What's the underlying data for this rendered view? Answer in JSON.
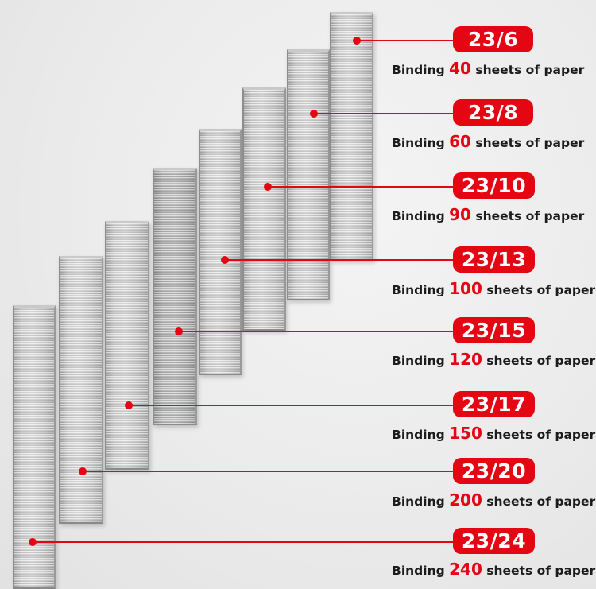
{
  "accent_color": "#e30613",
  "items": [
    {
      "label": "23/6",
      "text_prefix": "Binding",
      "sheets": "40",
      "text_suffix": "sheets of paper"
    },
    {
      "label": "23/8",
      "text_prefix": "Binding",
      "sheets": "60",
      "text_suffix": "sheets of paper"
    },
    {
      "label": "23/10",
      "text_prefix": "Binding",
      "sheets": "90",
      "text_suffix": "sheets of paper"
    },
    {
      "label": "23/13",
      "text_prefix": "Binding",
      "sheets": "100",
      "text_suffix": "sheets of paper"
    },
    {
      "label": "23/15",
      "text_prefix": "Binding",
      "sheets": "120",
      "text_suffix": "sheets of paper"
    },
    {
      "label": "23/17",
      "text_prefix": "Binding",
      "sheets": "150",
      "text_suffix": "sheets of paper"
    },
    {
      "label": "23/20",
      "text_prefix": "Binding",
      "sheets": "200",
      "text_suffix": "sheets of paper"
    },
    {
      "label": "23/24",
      "text_prefix": "Binding",
      "sheets": "240",
      "text_suffix": "sheets of paper"
    }
  ]
}
